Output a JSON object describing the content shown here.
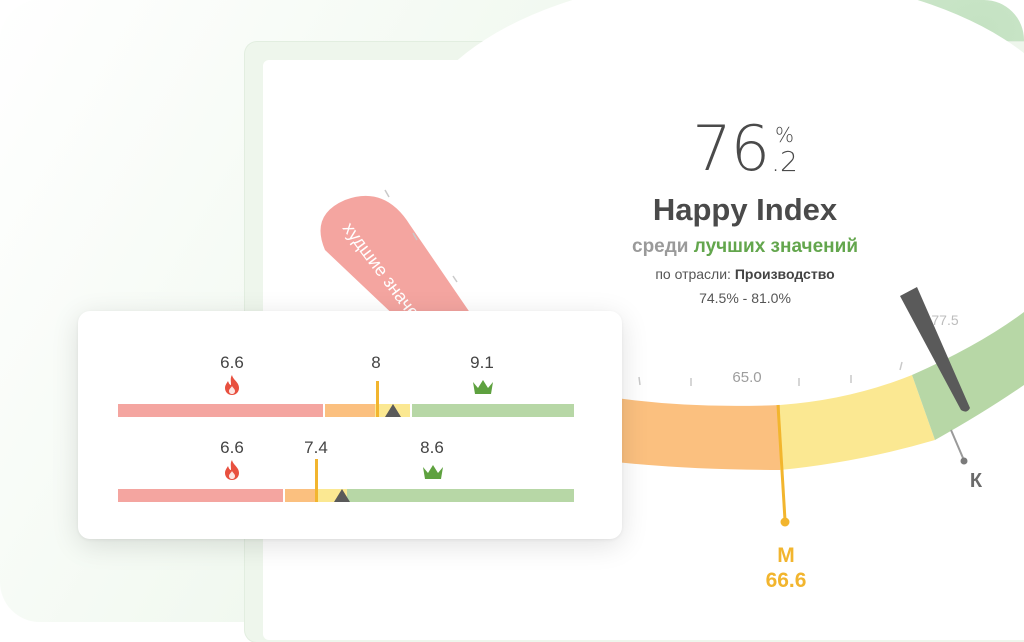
{
  "colors": {
    "worst": "#f4a5a0",
    "mid_orange": "#fbc07f",
    "mid_yellow": "#fbe892",
    "best": "#b7d7a6",
    "marker": "#f2b52e",
    "needle": "#555555"
  },
  "gauge": {
    "main_value": "76",
    "main_decimal": ".2",
    "main_unit": "%",
    "title": "Happy Index",
    "subtitle_prefix": "среди",
    "subtitle_highlight": "лучших значений",
    "industry_label": "по отрасли:",
    "industry_value": "Производство",
    "range_text": "74.5% - 81.0%",
    "worst_zone_label": "худшие значения",
    "tick_labels": [
      "65.0",
      "77.5"
    ],
    "marker_m": {
      "letter": "М",
      "value": "66.6"
    },
    "marker_k": {
      "letter": "К"
    }
  },
  "card": {
    "rows": [
      {
        "worst_val": "6.6",
        "marker_val": "8",
        "best_val": "9.1",
        "worst_icon": "fire-icon",
        "best_icon": "crown-icon"
      },
      {
        "worst_val": "6.6",
        "marker_val": "7.4",
        "best_val": "8.6",
        "worst_icon": "fire-icon",
        "best_icon": "crown-icon"
      }
    ]
  }
}
